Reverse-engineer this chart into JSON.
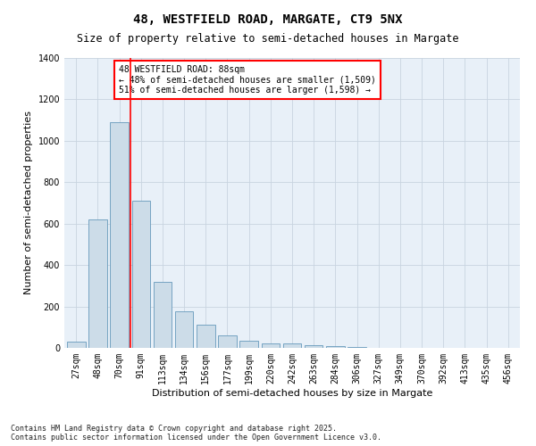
{
  "title1": "48, WESTFIELD ROAD, MARGATE, CT9 5NX",
  "title2": "Size of property relative to semi-detached houses in Margate",
  "xlabel": "Distribution of semi-detached houses by size in Margate",
  "ylabel": "Number of semi-detached properties",
  "categories": [
    "27sqm",
    "48sqm",
    "70sqm",
    "91sqm",
    "113sqm",
    "134sqm",
    "156sqm",
    "177sqm",
    "199sqm",
    "220sqm",
    "242sqm",
    "263sqm",
    "284sqm",
    "306sqm",
    "327sqm",
    "349sqm",
    "370sqm",
    "392sqm",
    "413sqm",
    "435sqm",
    "456sqm"
  ],
  "values": [
    30,
    620,
    1090,
    710,
    320,
    175,
    110,
    60,
    35,
    20,
    20,
    15,
    10,
    5,
    0,
    0,
    0,
    0,
    0,
    0,
    0
  ],
  "bar_color": "#ccdce8",
  "bar_edge_color": "#6699bb",
  "vline_color": "red",
  "vline_pos": 2.5,
  "annotation_title": "48 WESTFIELD ROAD: 88sqm",
  "annotation_line2": "← 48% of semi-detached houses are smaller (1,509)",
  "annotation_line3": "51% of semi-detached houses are larger (1,598) →",
  "ylim": [
    0,
    1400
  ],
  "yticks": [
    0,
    200,
    400,
    600,
    800,
    1000,
    1200,
    1400
  ],
  "footer1": "Contains HM Land Registry data © Crown copyright and database right 2025.",
  "footer2": "Contains public sector information licensed under the Open Government Licence v3.0.",
  "bg_color": "#ffffff",
  "plot_bg_color": "#e8f0f8",
  "grid_color": "#c8d4e0",
  "title1_fontsize": 10,
  "title2_fontsize": 8.5,
  "ylabel_fontsize": 8,
  "xlabel_fontsize": 8,
  "tick_fontsize": 7,
  "annot_fontsize": 7,
  "footer_fontsize": 6
}
